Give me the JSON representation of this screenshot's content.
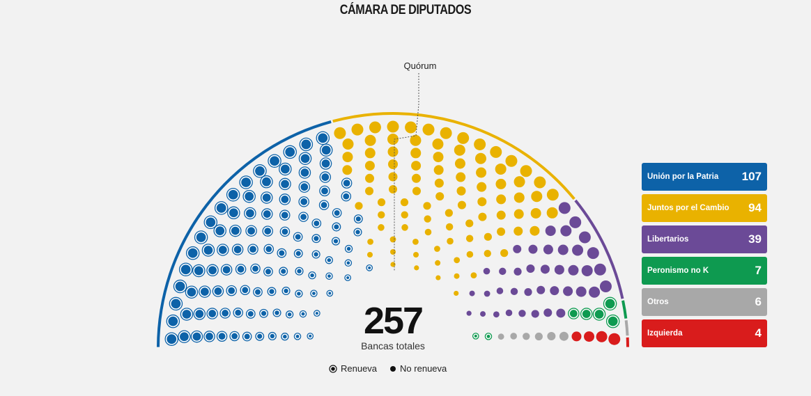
{
  "title": "CÁMARA DE DIPUTADOS",
  "quorum_label": "Quórum",
  "total": "257",
  "total_label": "Bancas totales",
  "key": {
    "renueva": "Renueva",
    "no_renueva": "No renueva"
  },
  "chart_data": {
    "type": "parliament",
    "total_seats": 257,
    "parties": [
      {
        "name": "Unión por la Patria",
        "seats": 107,
        "color": "#0d62a8"
      },
      {
        "name": "Juntos por el Cambio",
        "seats": 94,
        "color": "#e9b200"
      },
      {
        "name": "Libertarios",
        "seats": 39,
        "color": "#6b4a97"
      },
      {
        "name": "Peronismo no K",
        "seats": 7,
        "color": "#0e9a50"
      },
      {
        "name": "Otros",
        "seats": 6,
        "color": "#a8a8a8"
      },
      {
        "name": "Izquierda",
        "seats": 4,
        "color": "#d91c1c"
      }
    ]
  }
}
